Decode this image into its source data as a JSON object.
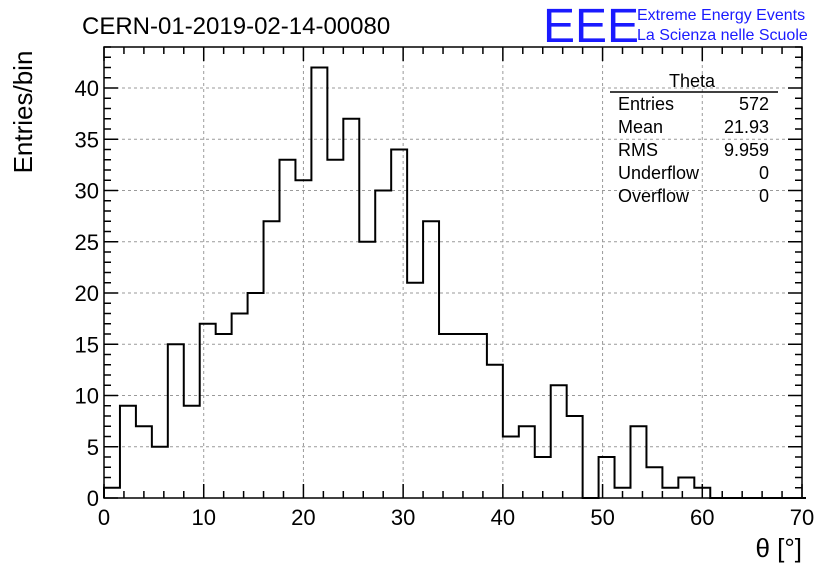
{
  "header": {
    "run_id": "CERN-01-2019-02-14-00080",
    "logo": "EEE",
    "logo_line1": "Extreme Energy Events",
    "logo_line2": "La Scienza nelle Scuole"
  },
  "stats_box": {
    "title": "Theta",
    "rows": [
      {
        "label": "Entries",
        "value": "572"
      },
      {
        "label": "Mean",
        "value": "21.93"
      },
      {
        "label": "RMS",
        "value": "9.959"
      },
      {
        "label": "Underflow",
        "value": "0"
      },
      {
        "label": "Overflow",
        "value": "0"
      }
    ]
  },
  "chart_data": {
    "type": "bar",
    "histogram_style": "step",
    "xlabel": "θ [°]",
    "ylabel": "Entries/bin",
    "xlim": [
      0,
      70
    ],
    "ylim": [
      0,
      44
    ],
    "x_ticks": [
      0,
      10,
      20,
      30,
      40,
      50,
      60,
      70
    ],
    "y_ticks": [
      0,
      5,
      10,
      15,
      20,
      25,
      30,
      35,
      40
    ],
    "grid": true,
    "bin_width": 1.6,
    "bin_edges_start": 0,
    "values": [
      1,
      9,
      7,
      5,
      15,
      9,
      17,
      16,
      18,
      20,
      27,
      33,
      31,
      42,
      33,
      37,
      25,
      30,
      34,
      21,
      27,
      16,
      16,
      16,
      13,
      6,
      7,
      4,
      11,
      8,
      0,
      4,
      1,
      7,
      3,
      1,
      2,
      1,
      0,
      0,
      0,
      0,
      0,
      0
    ]
  }
}
